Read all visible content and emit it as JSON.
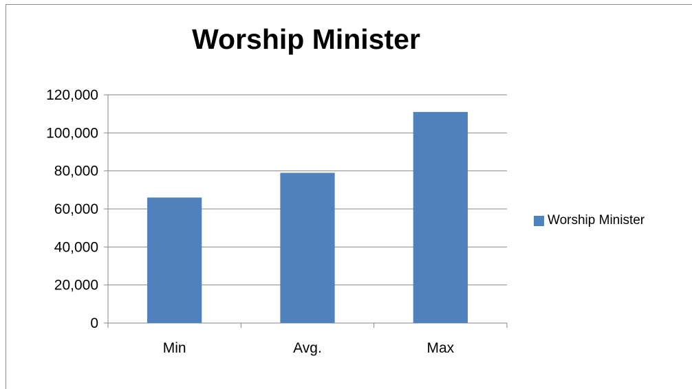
{
  "chart_data": {
    "type": "bar",
    "title": "Worship Minister",
    "categories": [
      "Min",
      "Avg.",
      "Max"
    ],
    "series": [
      {
        "name": "Worship Minister",
        "values": [
          66000,
          79000,
          111000
        ]
      }
    ],
    "ylim": [
      0,
      120000
    ],
    "yticks": [
      0,
      20000,
      40000,
      60000,
      80000,
      100000,
      120000
    ],
    "ytick_labels": [
      "0",
      "20,000",
      "40,000",
      "60,000",
      "80,000",
      "100,000",
      "120,000"
    ],
    "xlabel": "",
    "ylabel": "",
    "grid": true,
    "legend_position": "right",
    "colors": {
      "bar": "#4f81bd",
      "grid": "#868686",
      "axis": "#868686"
    }
  }
}
